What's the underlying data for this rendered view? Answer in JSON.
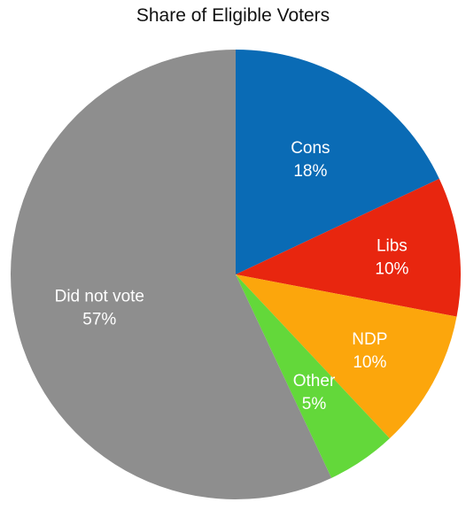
{
  "chart_data": {
    "type": "pie",
    "title": "Share of Eligible Voters",
    "slices": [
      {
        "label": "Cons",
        "value_label": "18%",
        "value": 18,
        "color": "#0a6bb5"
      },
      {
        "label": "Libs",
        "value_label": "10%",
        "value": 10,
        "color": "#e8260f"
      },
      {
        "label": "NDP",
        "value_label": "10%",
        "value": 10,
        "color": "#fca60c"
      },
      {
        "label": "Other",
        "value_label": "5%",
        "value": 5,
        "color": "#63d83a"
      },
      {
        "label": "Did not vote",
        "value_label": "57%",
        "value": 57,
        "color": "#8e8e8e"
      }
    ],
    "start_angle": "12 o'clock",
    "direction": "clockwise",
    "legend": "none"
  }
}
